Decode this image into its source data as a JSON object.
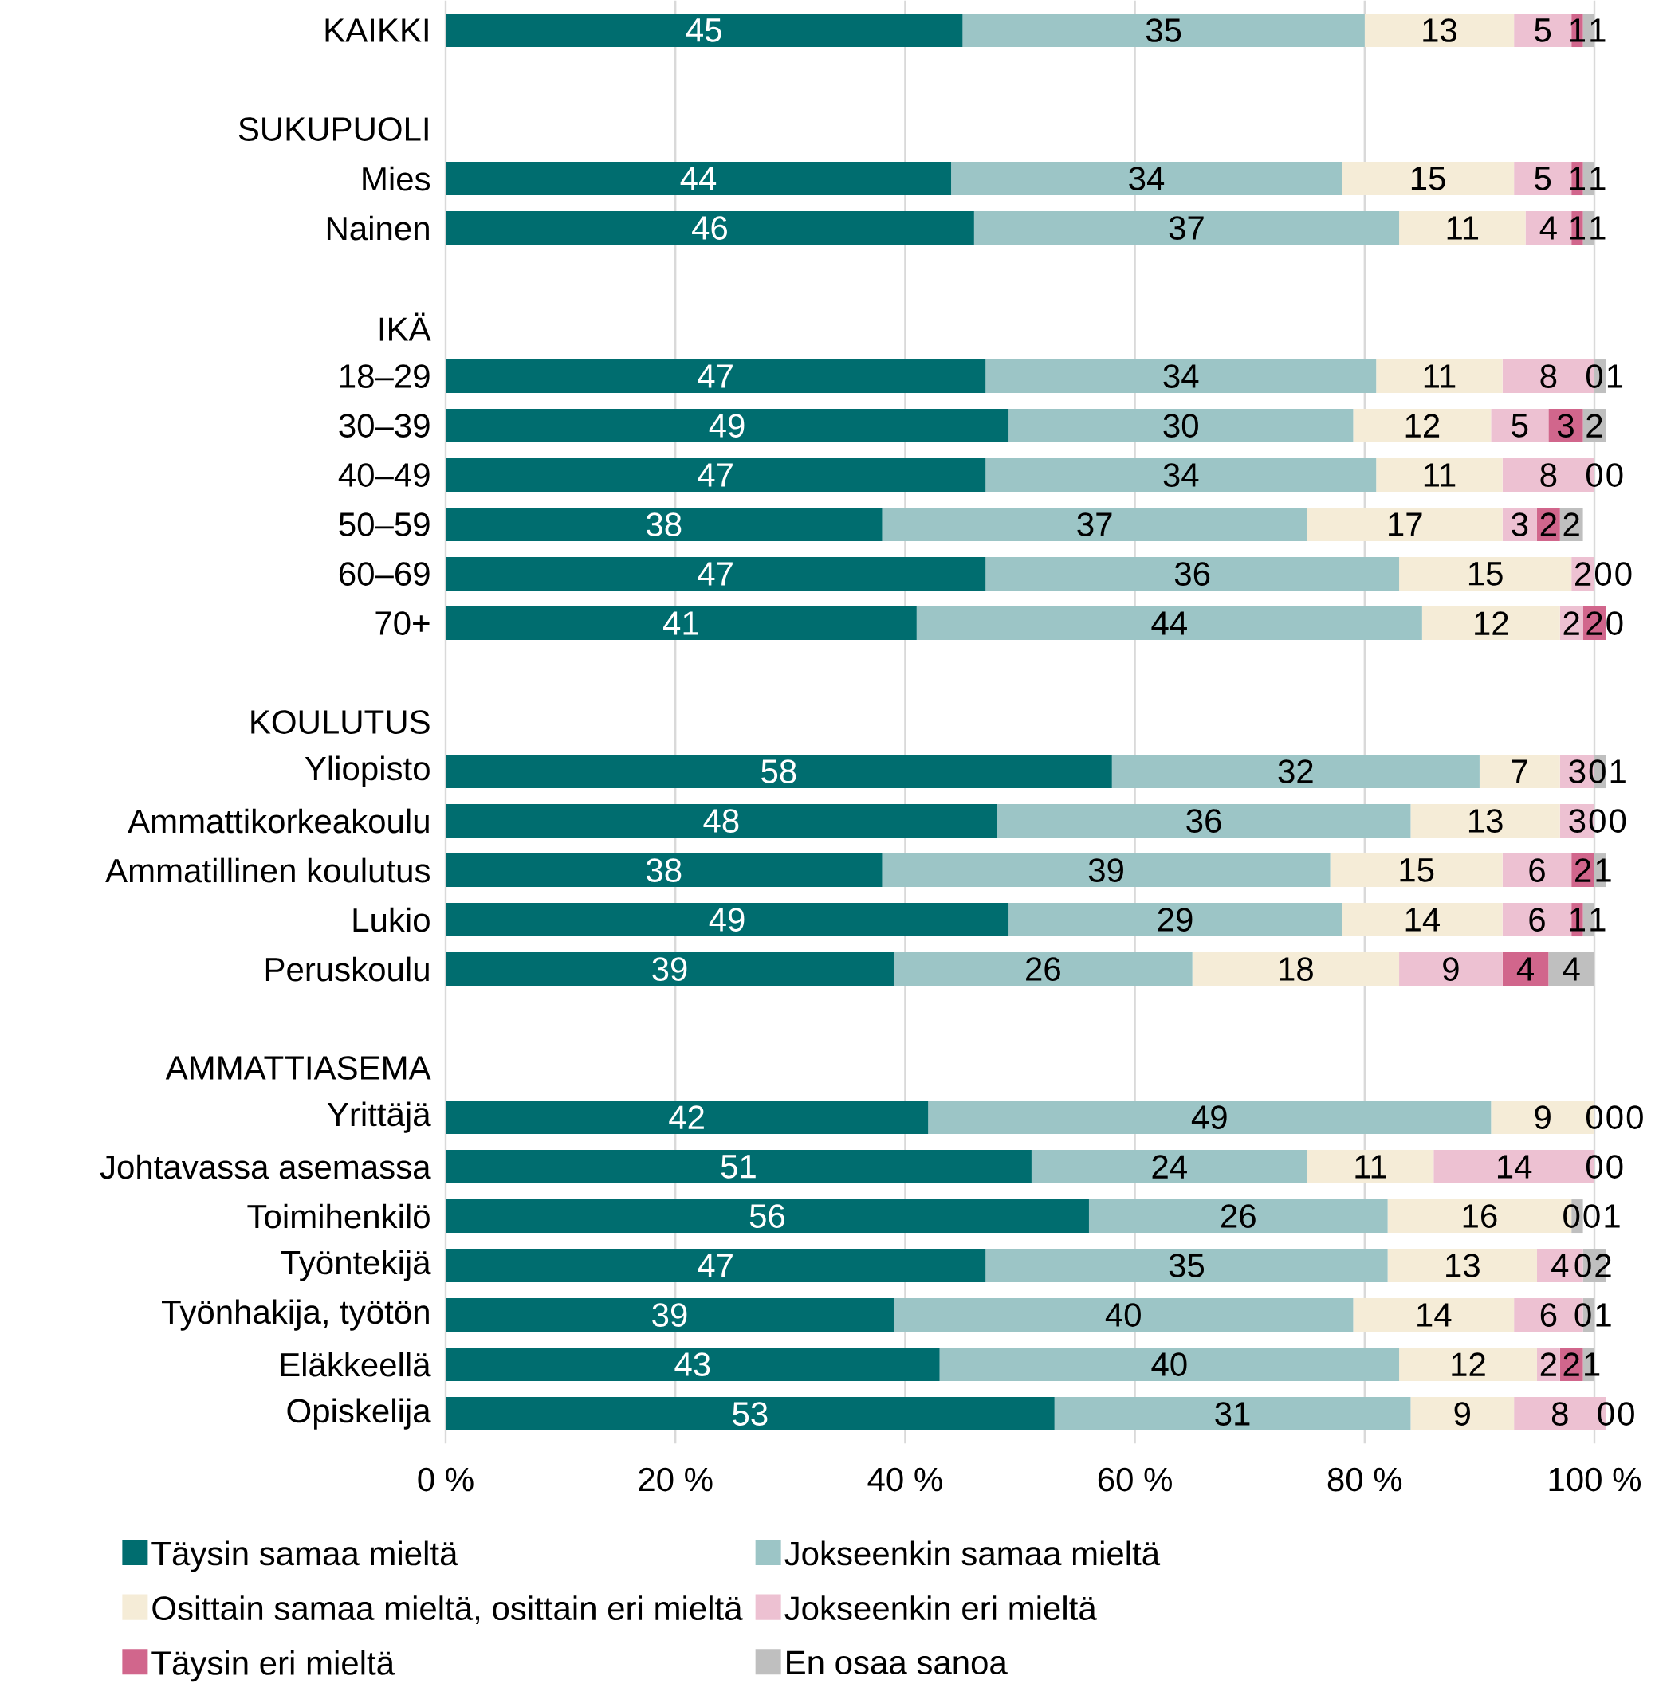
{
  "chart_data": {
    "type": "bar",
    "orientation": "horizontal",
    "stacked": true,
    "data_labels": true,
    "grid": "x",
    "legend": "bottom",
    "categories": [
      "KAIKKI",
      null,
      "SUKUPUOLI",
      "Mies",
      "Nainen",
      null,
      "IKÄ",
      "18–29",
      "30–39",
      "40–49",
      "50–59",
      "60–69",
      "70+",
      null,
      "KOULUTUS",
      "Yliopisto",
      "Ammattikorkeakoulu",
      "Ammatillinen koulutus",
      "Lukio",
      "Peruskoulu",
      null,
      "AMMATTIASEMA",
      "Yrittäjä",
      "Johtavassa asemassa",
      "Toimihenkilö",
      "Työntekijä",
      "Työnhakija, työtön",
      "Eläkkeellä",
      "Opiskelija"
    ],
    "xlim": [
      0,
      101
    ],
    "xticks": [
      {
        "value": 0,
        "label": "0 %"
      },
      {
        "value": 20,
        "label": "20 %"
      },
      {
        "value": 40,
        "label": "40 %"
      },
      {
        "value": 60,
        "label": "60 %"
      },
      {
        "value": 80,
        "label": "80 %"
      },
      {
        "value": 100,
        "label": "100 %"
      }
    ],
    "series": [
      {
        "name": "Täysin samaa mieltä",
        "color": "#006d6f",
        "values": [
          45,
          null,
          null,
          44,
          46,
          null,
          null,
          47,
          49,
          47,
          38,
          47,
          41,
          null,
          null,
          58,
          48,
          38,
          49,
          39,
          null,
          null,
          42,
          51,
          56,
          47,
          39,
          43,
          53
        ]
      },
      {
        "name": "Jokseenkin samaa mieltä",
        "color": "#9cc5c6",
        "values": [
          35,
          null,
          null,
          34,
          37,
          null,
          null,
          34,
          30,
          34,
          37,
          36,
          44,
          null,
          null,
          32,
          36,
          39,
          29,
          26,
          null,
          null,
          49,
          24,
          26,
          35,
          40,
          40,
          31
        ]
      },
      {
        "name": "Osittain samaa mieltä, osittain eri mieltä",
        "color": "#f5ecd7",
        "values": [
          13,
          null,
          null,
          15,
          11,
          null,
          null,
          11,
          12,
          11,
          17,
          15,
          12,
          null,
          null,
          7,
          13,
          15,
          14,
          18,
          null,
          null,
          9,
          11,
          16,
          13,
          14,
          12,
          9
        ]
      },
      {
        "name": "Jokseenkin eri mieltä",
        "color": "#edc1d2",
        "values": [
          5,
          null,
          null,
          5,
          4,
          null,
          null,
          8,
          5,
          8,
          3,
          2,
          2,
          null,
          null,
          3,
          3,
          6,
          6,
          9,
          null,
          null,
          0,
          14,
          0,
          4,
          6,
          2,
          8
        ]
      },
      {
        "name": "Täysin eri mieltä",
        "color": "#d1668c",
        "values": [
          1,
          null,
          null,
          1,
          1,
          null,
          null,
          0,
          3,
          0,
          2,
          0,
          2,
          null,
          null,
          0,
          0,
          2,
          1,
          4,
          null,
          null,
          0,
          0,
          0,
          0,
          0,
          2,
          0
        ]
      },
      {
        "name": "En osaa sanoa",
        "color": "#bfbfbf",
        "values": [
          1,
          null,
          null,
          1,
          1,
          null,
          null,
          1,
          2,
          0,
          2,
          0,
          0,
          null,
          null,
          1,
          0,
          1,
          1,
          4,
          null,
          null,
          0,
          0,
          1,
          2,
          1,
          1,
          0
        ]
      }
    ]
  }
}
